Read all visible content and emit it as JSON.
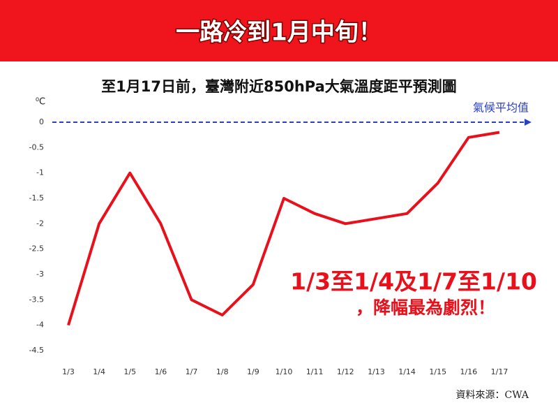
{
  "banner": "一路冷到1月中旬！",
  "chart_data": {
    "type": "line",
    "title": "至1月17日前，臺灣附近850hPa大氣溫度距平預測圖",
    "y_unit": "⁰C",
    "categories": [
      "1/3",
      "1/4",
      "1/5",
      "1/6",
      "1/7",
      "1/8",
      "1/9",
      "1/10",
      "1/11",
      "1/12",
      "1/13",
      "1/14",
      "1/15",
      "1/16",
      "1/17"
    ],
    "values": [
      -4,
      -2,
      -1,
      -2,
      -3.5,
      -3.8,
      -3.2,
      -1.5,
      -1.8,
      -2,
      -1.9,
      -1.8,
      -1.2,
      -0.3,
      -0.2
    ],
    "color": "#e8101a",
    "ylim": [
      -4.5,
      0
    ],
    "yticks": [
      0,
      -0.5,
      -1,
      -1.5,
      -2,
      -2.5,
      -3,
      -3.5,
      -4,
      -4.5
    ],
    "grid": false,
    "reference_line": {
      "value": 0,
      "label": "氣候平均值",
      "color": "#2a3fc4"
    },
    "annotations": [
      "1/3至1/4及1/7至1/10",
      "，降幅最為劇烈！"
    ],
    "source": "資料來源：CWA"
  }
}
